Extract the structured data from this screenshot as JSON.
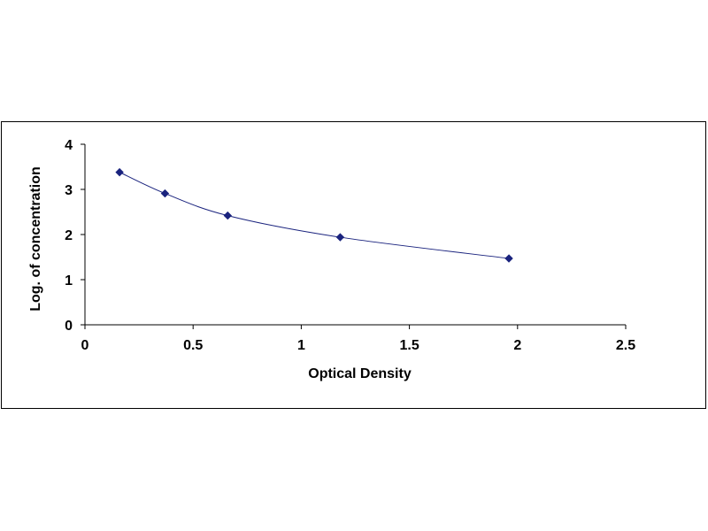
{
  "chart_data": {
    "type": "scatter",
    "title": "",
    "xlabel": "Optical Density",
    "ylabel": "Log. of concentration",
    "xlim": [
      0,
      2.5
    ],
    "ylim": [
      0,
      4
    ],
    "x_ticks": [
      "0",
      "0.5",
      "1",
      "1.5",
      "2",
      "2.5"
    ],
    "y_ticks": [
      "0",
      "1",
      "2",
      "3",
      "4"
    ],
    "x_tick_values": [
      0,
      0.5,
      1,
      1.5,
      2,
      2.5
    ],
    "y_tick_values": [
      0,
      1,
      2,
      3,
      4
    ],
    "grid": false,
    "legend": "none",
    "series": [
      {
        "x": [
          0.16,
          0.37,
          0.66,
          1.18,
          1.96
        ],
        "y": [
          3.38,
          2.91,
          2.42,
          1.94,
          1.47
        ],
        "marker": "diamond",
        "color": "#1a237e",
        "trendline": "smooth-curve"
      }
    ]
  }
}
